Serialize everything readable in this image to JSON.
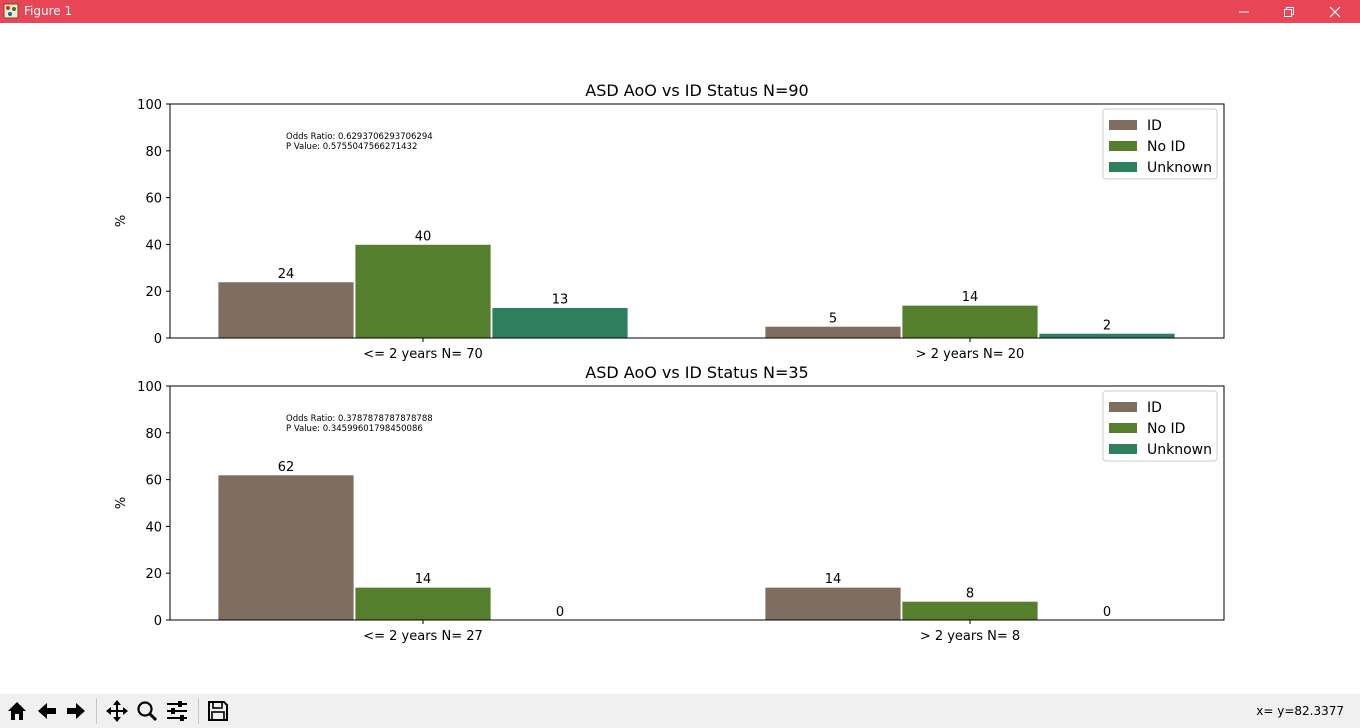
{
  "window": {
    "title": "Figure 1",
    "titlebar_color": "#e84656",
    "icons": [
      "minimize-icon",
      "restore-icon",
      "close-icon"
    ]
  },
  "toolbar": {
    "buttons": [
      "home-icon",
      "back-icon",
      "forward-icon",
      "pan-icon",
      "zoom-icon",
      "configure-subplots-icon",
      "save-icon"
    ],
    "coordinates": "x= y=82.3377"
  },
  "colors": {
    "ID": "#7f6d5f",
    "No ID": "#557f2d",
    "Unknown": "#2d7f5e"
  },
  "chart_data": [
    {
      "type": "bar",
      "title": "ASD AoO vs ID Status N=90",
      "xlabel": "",
      "ylabel": "%",
      "ylim": [
        0,
        100
      ],
      "yticks": [
        "0",
        "20",
        "40",
        "60",
        "80",
        "100"
      ],
      "categories": [
        "<= 2 years N= 70",
        "> 2 years N= 20"
      ],
      "series": [
        {
          "name": "ID",
          "values": [
            24,
            5
          ],
          "labels": [
            "24",
            "5"
          ]
        },
        {
          "name": "No ID",
          "values": [
            40,
            14
          ],
          "labels": [
            "40",
            "14"
          ]
        },
        {
          "name": "Unknown",
          "values": [
            13,
            2
          ],
          "labels": [
            "13",
            "2"
          ]
        }
      ],
      "annotation": [
        "Odds Ratio: 0.6293706293706294",
        "P Value: 0.5755047566271432"
      ],
      "legend": "top-right",
      "grid": false
    },
    {
      "type": "bar",
      "title": "ASD AoO vs ID Status N=35",
      "xlabel": "",
      "ylabel": "%",
      "ylim": [
        0,
        100
      ],
      "yticks": [
        "0",
        "20",
        "40",
        "60",
        "80",
        "100"
      ],
      "categories": [
        "<= 2 years N= 27",
        "> 2 years N= 8"
      ],
      "series": [
        {
          "name": "ID",
          "values": [
            62,
            14
          ],
          "labels": [
            "62",
            "14"
          ]
        },
        {
          "name": "No ID",
          "values": [
            14,
            8
          ],
          "labels": [
            "14",
            "8"
          ]
        },
        {
          "name": "Unknown",
          "values": [
            0,
            0
          ],
          "labels": [
            "0",
            "0"
          ]
        }
      ],
      "annotation": [
        "Odds Ratio: 0.3787878787878788",
        "P Value: 0.34599601798450086"
      ],
      "legend": "top-right",
      "grid": false
    }
  ]
}
